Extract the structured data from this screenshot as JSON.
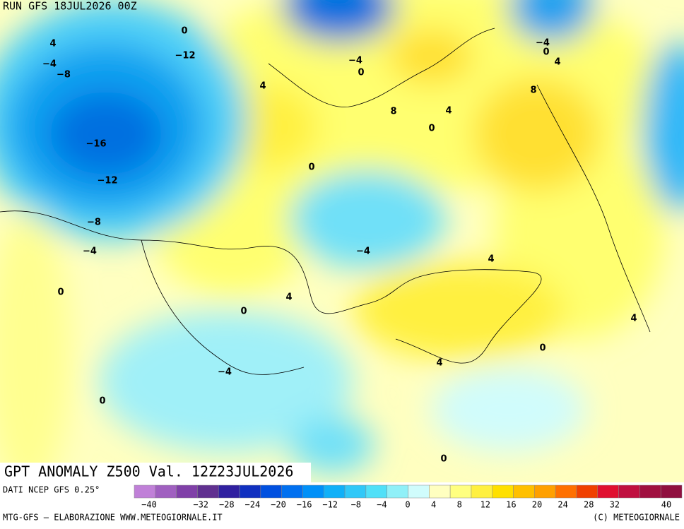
{
  "header": {
    "run": "RUN GFS 18JUL2026 00Z"
  },
  "title": "GPT ANOMALY Z500 Val. 12Z23JUL2026",
  "footer": {
    "source": "DATI NCEP GFS 0.25°",
    "credit": "MTG-GFS — ELABORAZIONE WWW.METEOGIORNALE.IT",
    "copyright": "(C) METEOGIORNALE"
  },
  "legend": {
    "colors": [
      "#c080d8",
      "#a060c0",
      "#8040a8",
      "#603090",
      "#3020a0",
      "#1030c0",
      "#0050e0",
      "#0070f0",
      "#0090f8",
      "#10b0f8",
      "#30c8f8",
      "#50e0f8",
      "#90f0f8",
      "#d0fcfc",
      "#ffffc0",
      "#ffff80",
      "#fff040",
      "#ffe000",
      "#ffc000",
      "#ffa000",
      "#ff7000",
      "#f04000",
      "#e01030",
      "#c01040",
      "#a01040",
      "#901040"
    ],
    "ticks": [
      {
        "value": -40,
        "label": "−40"
      },
      {
        "value": -32,
        "label": "−32"
      },
      {
        "value": -28,
        "label": "−28"
      },
      {
        "value": -24,
        "label": "−24"
      },
      {
        "value": -20,
        "label": "−20"
      },
      {
        "value": -16,
        "label": "−16"
      },
      {
        "value": -12,
        "label": "−12"
      },
      {
        "value": -8,
        "label": "−8"
      },
      {
        "value": -4,
        "label": "−4"
      },
      0,
      4,
      8,
      12,
      16,
      20,
      24,
      28,
      32,
      40
    ]
  },
  "contour_labels": [
    "0",
    "4",
    "−4",
    "−8",
    "−12",
    "4",
    "−16",
    "−12",
    "−8",
    "−4",
    "0",
    "−4",
    "0",
    "8",
    "4",
    "0",
    "0",
    "−4",
    "0",
    "4",
    "8",
    "−4",
    "4",
    "4",
    "0",
    "4",
    "0",
    "4",
    "−4",
    "0",
    "0"
  ]
}
